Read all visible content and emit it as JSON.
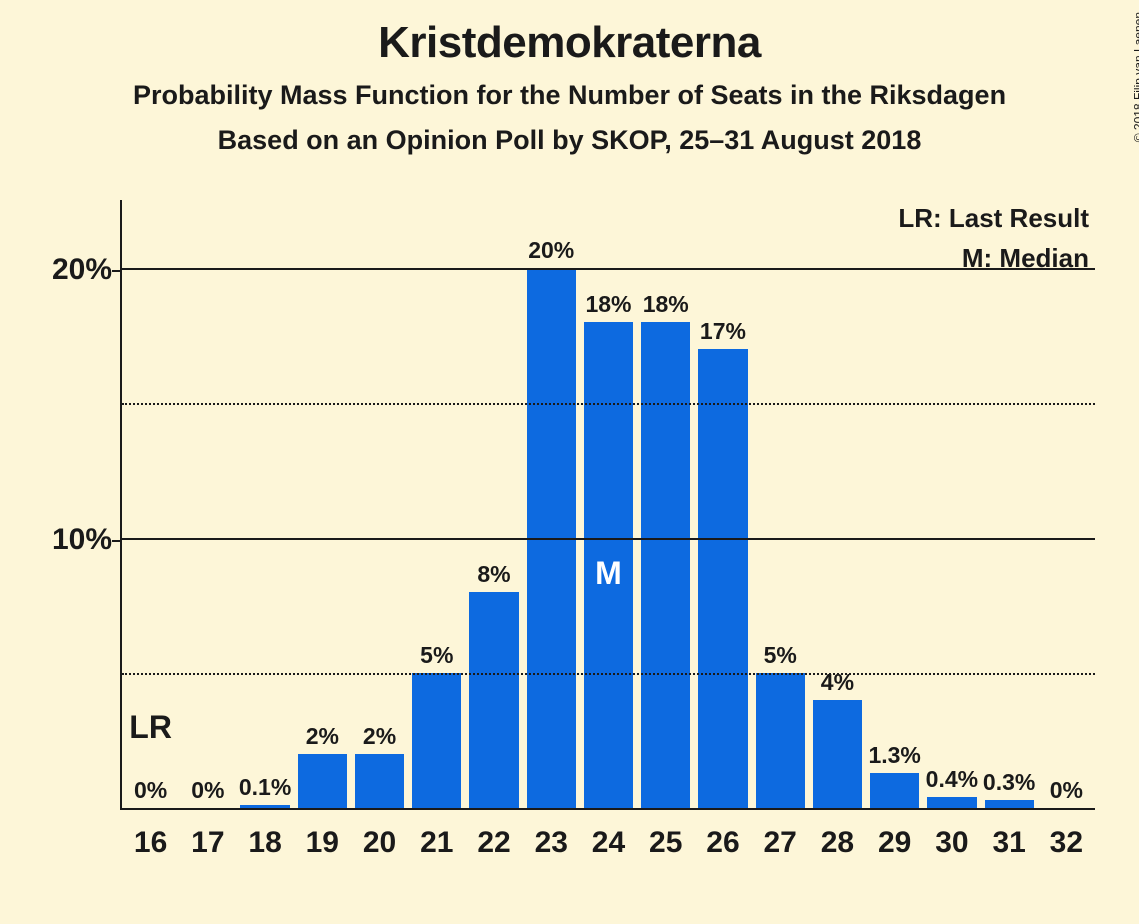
{
  "title": "Kristdemokraterna",
  "subtitle1": "Probability Mass Function for the Number of Seats in the Riksdagen",
  "subtitle2": "Based on an Opinion Poll by SKOP, 25–31 August 2018",
  "copyright": "© 2018 Filip van Laenen",
  "legend": {
    "lr": "LR: Last Result",
    "m": "M: Median"
  },
  "chart": {
    "type": "bar",
    "bar_color": "#0d6ae0",
    "background_color": "#fdf6d8",
    "grid_major_color": "#1a1a1a",
    "grid_minor_color": "#1a1a1a",
    "ylim_max": 22.5,
    "y_major_ticks": [
      10,
      20
    ],
    "y_minor_ticks": [
      5,
      15
    ],
    "y_major_labels": [
      "10%",
      "20%"
    ],
    "categories": [
      "16",
      "17",
      "18",
      "19",
      "20",
      "21",
      "22",
      "23",
      "24",
      "25",
      "26",
      "27",
      "28",
      "29",
      "30",
      "31",
      "32"
    ],
    "values": [
      0,
      0,
      0.1,
      2,
      2,
      5,
      8,
      20,
      18,
      18,
      17,
      5,
      4,
      1.3,
      0.4,
      0.3,
      0
    ],
    "value_labels": [
      "0%",
      "0%",
      "0.1%",
      "2%",
      "2%",
      "5%",
      "8%",
      "20%",
      "18%",
      "18%",
      "17%",
      "5%",
      "4%",
      "1.3%",
      "0.4%",
      "0.3%",
      "0%"
    ],
    "last_result_index": 0,
    "median_index": 8,
    "lr_symbol": "LR",
    "median_symbol": "M"
  }
}
